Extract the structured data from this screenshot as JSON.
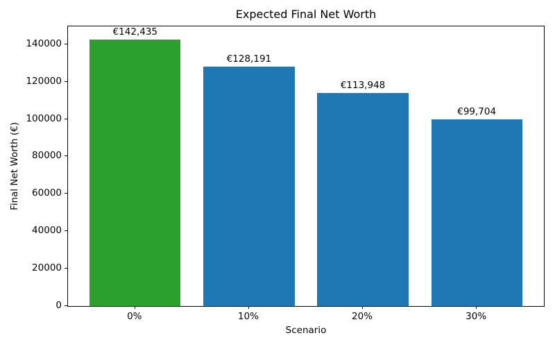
{
  "figure": {
    "background": "#ffffff",
    "text_color": "#000000"
  },
  "chart_data": {
    "type": "bar",
    "title": "Expected Final Net Worth",
    "xlabel": "Scenario",
    "ylabel": "Final Net Worth (€)",
    "categories": [
      "0%",
      "10%",
      "20%",
      "30%"
    ],
    "values": [
      142435,
      128191,
      113948,
      99704
    ],
    "bar_labels": [
      "€142,435",
      "€128,191",
      "€113,948",
      "€99,704"
    ],
    "bar_colors": [
      "#2ca02c",
      "#1f77b4",
      "#1f77b4",
      "#1f77b4"
    ],
    "highlight_color": "#2ca02c",
    "default_color": "#1f77b4",
    "yticks": [
      0,
      20000,
      40000,
      60000,
      80000,
      100000,
      120000,
      140000
    ],
    "ytick_labels": [
      "0",
      "20000",
      "40000",
      "60000",
      "80000",
      "100000",
      "120000",
      "140000"
    ],
    "ylim": [
      0,
      149557
    ],
    "xlim": [
      -0.59,
      3.59
    ],
    "bar_width": 0.8,
    "grid": false,
    "legend_position": "none"
  }
}
